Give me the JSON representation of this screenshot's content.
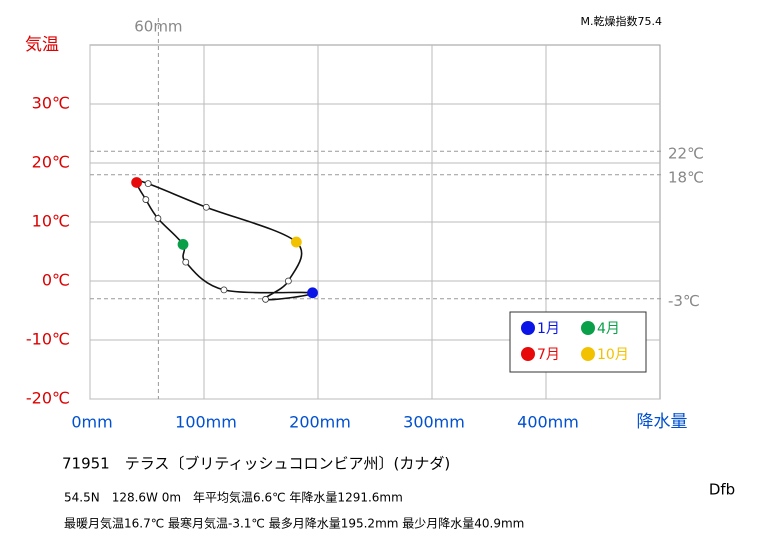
{
  "chart_data": {
    "type": "climograph",
    "y_title": "気温",
    "x_title": "降水量",
    "aridity_index": "M.乾燥指数75.4",
    "station": "71951　テラス〔ブリティッシュコロンビア州〕(カナダ)",
    "details": [
      "54.5N　128.6W 0m　年平均気温6.6℃ 年降水量1291.6mm",
      "最暖月気温16.7℃ 最寒月気温-3.1℃ 最多月降水量195.2mm 最少月降水量40.9mm"
    ],
    "climate_class": "Dfb",
    "xlim": [
      0,
      500
    ],
    "ylim": [
      -20,
      40
    ],
    "xticks": [
      {
        "value": 0,
        "label": "0mm"
      },
      {
        "value": 100,
        "label": "100mm"
      },
      {
        "value": 200,
        "label": "200mm"
      },
      {
        "value": 300,
        "label": "300mm"
      },
      {
        "value": 400,
        "label": "400mm"
      }
    ],
    "yticks": [
      {
        "value": -20,
        "label": "-20℃"
      },
      {
        "value": -10,
        "label": "-10℃"
      },
      {
        "value": 0,
        "label": "0℃"
      },
      {
        "value": 10,
        "label": "10℃"
      },
      {
        "value": 20,
        "label": "20℃"
      },
      {
        "value": 30,
        "label": "30℃"
      }
    ],
    "grid": true,
    "reference_lines": [
      {
        "axis": "x",
        "value": 60,
        "label": "60mm"
      },
      {
        "axis": "y",
        "value": 22,
        "label": "22℃"
      },
      {
        "axis": "y",
        "value": 18,
        "label": "18℃"
      },
      {
        "axis": "y",
        "value": -3,
        "label": "-3℃"
      }
    ],
    "precipitation": [
      195.2,
      117.5,
      84,
      81.6,
      59.6,
      49,
      40.9,
      51,
      102,
      181,
      174,
      154
    ],
    "temperature": [
      -2.0,
      -1.5,
      3.2,
      6.2,
      10.6,
      13.8,
      16.7,
      16.5,
      12.5,
      6.6,
      0,
      -3.1
    ],
    "marker_colors": [
      "#0a14e6",
      "#ffffff",
      "#ffffff",
      "#0aa04a",
      "#ffffff",
      "#ffffff",
      "#e60a0a",
      "#ffffff",
      "#ffffff",
      "#f2c200",
      "#ffffff",
      "#ffffff"
    ],
    "legend": [
      {
        "name": "1月",
        "color": "#0a14e6"
      },
      {
        "name": "4月",
        "color": "#0aa04a"
      },
      {
        "name": "7月",
        "color": "#e60a0a"
      },
      {
        "name": "10月",
        "color": "#f2c200"
      }
    ]
  }
}
